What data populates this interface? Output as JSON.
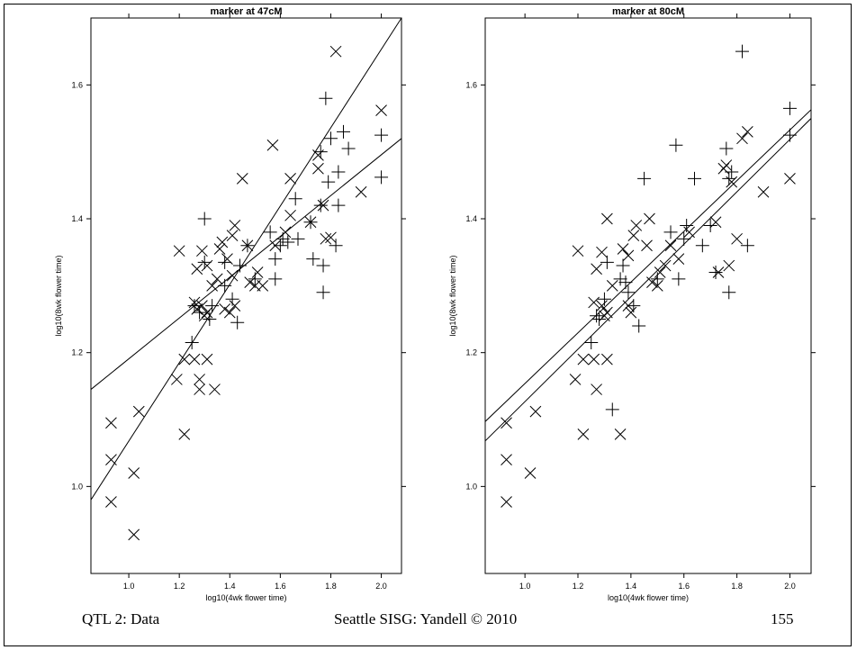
{
  "footer": {
    "left": "QTL 2: Data",
    "center": "Seattle SISG: Yandell © 2010",
    "right": "155"
  },
  "chart_data": [
    {
      "type": "scatter",
      "title": "marker at 47cM",
      "xlabel": "log10(4wk flower time)",
      "ylabel": "log10(8wk flower time)",
      "xlim": [
        0.85,
        2.08
      ],
      "ylim": [
        0.87,
        1.7
      ],
      "xticks": [
        "1.0",
        "1.2",
        "1.4",
        "1.6",
        "1.8",
        "2.0"
      ],
      "yticks": [
        "1.0",
        "1.2",
        "1.4",
        "1.6"
      ],
      "series": [
        {
          "marker": "x",
          "points": [
            [
              0.93,
              1.095
            ],
            [
              0.93,
              1.04
            ],
            [
              0.93,
              0.977
            ],
            [
              1.02,
              1.02
            ],
            [
              1.02,
              0.928
            ],
            [
              1.04,
              1.112
            ],
            [
              1.19,
              1.16
            ],
            [
              1.2,
              1.352
            ],
            [
              1.22,
              1.078
            ],
            [
              1.22,
              1.19
            ],
            [
              1.26,
              1.19
            ],
            [
              1.26,
              1.275
            ],
            [
              1.27,
              1.325
            ],
            [
              1.27,
              1.265
            ],
            [
              1.28,
              1.16
            ],
            [
              1.28,
              1.145
            ],
            [
              1.29,
              1.352
            ],
            [
              1.29,
              1.27
            ],
            [
              1.3,
              1.255
            ],
            [
              1.31,
              1.19
            ],
            [
              1.31,
              1.26
            ],
            [
              1.31,
              1.33
            ],
            [
              1.33,
              1.3
            ],
            [
              1.34,
              1.145
            ],
            [
              1.35,
              1.31
            ],
            [
              1.36,
              1.355
            ],
            [
              1.37,
              1.365
            ],
            [
              1.38,
              1.265
            ],
            [
              1.39,
              1.34
            ],
            [
              1.4,
              1.26
            ],
            [
              1.41,
              1.315
            ],
            [
              1.41,
              1.375
            ],
            [
              1.42,
              1.39
            ],
            [
              1.42,
              1.27
            ],
            [
              1.45,
              1.46
            ],
            [
              1.47,
              1.36
            ],
            [
              1.48,
              1.305
            ],
            [
              1.5,
              1.3
            ],
            [
              1.51,
              1.32
            ],
            [
              1.53,
              1.3
            ],
            [
              1.57,
              1.51
            ],
            [
              1.58,
              1.36
            ],
            [
              1.62,
              1.38
            ],
            [
              1.64,
              1.46
            ],
            [
              1.64,
              1.405
            ],
            [
              1.72,
              1.395
            ],
            [
              1.75,
              1.475
            ],
            [
              1.75,
              1.495
            ],
            [
              1.77,
              1.42
            ],
            [
              1.78,
              1.37
            ],
            [
              1.8,
              1.372
            ],
            [
              1.82,
              1.65
            ],
            [
              1.92,
              1.44
            ],
            [
              2.0,
              1.562
            ]
          ]
        },
        {
          "marker": "+",
          "points": [
            [
              1.25,
              1.215
            ],
            [
              1.26,
              1.27
            ],
            [
              1.28,
              1.26
            ],
            [
              1.3,
              1.4
            ],
            [
              1.3,
              1.335
            ],
            [
              1.32,
              1.25
            ],
            [
              1.33,
              1.27
            ],
            [
              1.38,
              1.3
            ],
            [
              1.38,
              1.335
            ],
            [
              1.41,
              1.28
            ],
            [
              1.43,
              1.245
            ],
            [
              1.44,
              1.33
            ],
            [
              1.47,
              1.36
            ],
            [
              1.5,
              1.31
            ],
            [
              1.56,
              1.38
            ],
            [
              1.58,
              1.34
            ],
            [
              1.58,
              1.31
            ],
            [
              1.6,
              1.36
            ],
            [
              1.61,
              1.37
            ],
            [
              1.63,
              1.365
            ],
            [
              1.66,
              1.43
            ],
            [
              1.67,
              1.37
            ],
            [
              1.72,
              1.395
            ],
            [
              1.73,
              1.34
            ],
            [
              1.76,
              1.42
            ],
            [
              1.76,
              1.5
            ],
            [
              1.77,
              1.33
            ],
            [
              1.77,
              1.29
            ],
            [
              1.78,
              1.58
            ],
            [
              1.79,
              1.455
            ],
            [
              1.8,
              1.52
            ],
            [
              1.82,
              1.36
            ],
            [
              1.83,
              1.42
            ],
            [
              1.83,
              1.47
            ],
            [
              1.85,
              1.53
            ],
            [
              1.87,
              1.505
            ],
            [
              2.0,
              1.462
            ],
            [
              2.0,
              1.525
            ]
          ]
        }
      ],
      "lines": [
        {
          "x": [
            0.85,
            2.08
          ],
          "y": [
            1.145,
            1.52
          ]
        },
        {
          "x": [
            0.85,
            2.08
          ],
          "y": [
            0.98,
            1.7
          ]
        }
      ]
    },
    {
      "type": "scatter",
      "title": "marker at 80cM",
      "xlabel": "log10(4wk flower time)",
      "ylabel": "log10(8wk flower time)",
      "xlim": [
        0.85,
        2.08
      ],
      "ylim": [
        0.87,
        1.7
      ],
      "xticks": [
        "1.0",
        "1.2",
        "1.4",
        "1.6",
        "1.8",
        "2.0"
      ],
      "yticks": [
        "1.0",
        "1.2",
        "1.4",
        "1.6"
      ],
      "series": [
        {
          "marker": "x",
          "points": [
            [
              0.93,
              1.095
            ],
            [
              0.93,
              1.04
            ],
            [
              0.93,
              0.977
            ],
            [
              1.02,
              1.02
            ],
            [
              1.04,
              1.112
            ],
            [
              1.19,
              1.16
            ],
            [
              1.2,
              1.352
            ],
            [
              1.22,
              1.078
            ],
            [
              1.22,
              1.19
            ],
            [
              1.26,
              1.19
            ],
            [
              1.26,
              1.275
            ],
            [
              1.27,
              1.145
            ],
            [
              1.27,
              1.325
            ],
            [
              1.29,
              1.35
            ],
            [
              1.29,
              1.27
            ],
            [
              1.3,
              1.255
            ],
            [
              1.31,
              1.19
            ],
            [
              1.31,
              1.26
            ],
            [
              1.31,
              1.4
            ],
            [
              1.33,
              1.3
            ],
            [
              1.36,
              1.078
            ],
            [
              1.37,
              1.355
            ],
            [
              1.39,
              1.27
            ],
            [
              1.39,
              1.345
            ],
            [
              1.4,
              1.26
            ],
            [
              1.41,
              1.375
            ],
            [
              1.42,
              1.39
            ],
            [
              1.46,
              1.36
            ],
            [
              1.47,
              1.4
            ],
            [
              1.48,
              1.305
            ],
            [
              1.5,
              1.3
            ],
            [
              1.51,
              1.32
            ],
            [
              1.53,
              1.33
            ],
            [
              1.55,
              1.36
            ],
            [
              1.58,
              1.34
            ],
            [
              1.62,
              1.38
            ],
            [
              1.72,
              1.395
            ],
            [
              1.73,
              1.32
            ],
            [
              1.75,
              1.475
            ],
            [
              1.76,
              1.48
            ],
            [
              1.77,
              1.33
            ],
            [
              1.78,
              1.455
            ],
            [
              1.8,
              1.37
            ],
            [
              1.82,
              1.52
            ],
            [
              1.84,
              1.53
            ],
            [
              1.9,
              1.44
            ],
            [
              2.0,
              1.46
            ]
          ]
        },
        {
          "marker": "+",
          "points": [
            [
              1.25,
              1.215
            ],
            [
              1.27,
              1.255
            ],
            [
              1.28,
              1.25
            ],
            [
              1.3,
              1.28
            ],
            [
              1.31,
              1.335
            ],
            [
              1.33,
              1.115
            ],
            [
              1.36,
              1.31
            ],
            [
              1.37,
              1.33
            ],
            [
              1.38,
              1.305
            ],
            [
              1.39,
              1.29
            ],
            [
              1.41,
              1.27
            ],
            [
              1.43,
              1.24
            ],
            [
              1.45,
              1.46
            ],
            [
              1.5,
              1.31
            ],
            [
              1.55,
              1.38
            ],
            [
              1.57,
              1.51
            ],
            [
              1.58,
              1.31
            ],
            [
              1.6,
              1.37
            ],
            [
              1.61,
              1.39
            ],
            [
              1.64,
              1.46
            ],
            [
              1.67,
              1.36
            ],
            [
              1.7,
              1.39
            ],
            [
              1.72,
              1.32
            ],
            [
              1.76,
              1.505
            ],
            [
              1.77,
              1.29
            ],
            [
              1.77,
              1.46
            ],
            [
              1.78,
              1.47
            ],
            [
              1.82,
              1.65
            ],
            [
              1.84,
              1.36
            ],
            [
              2.0,
              1.525
            ],
            [
              2.0,
              1.565
            ]
          ]
        }
      ],
      "lines": [
        {
          "x": [
            0.85,
            2.08
          ],
          "y": [
            1.097,
            1.563
          ]
        },
        {
          "x": [
            0.85,
            2.08
          ],
          "y": [
            1.068,
            1.55
          ]
        }
      ]
    }
  ]
}
